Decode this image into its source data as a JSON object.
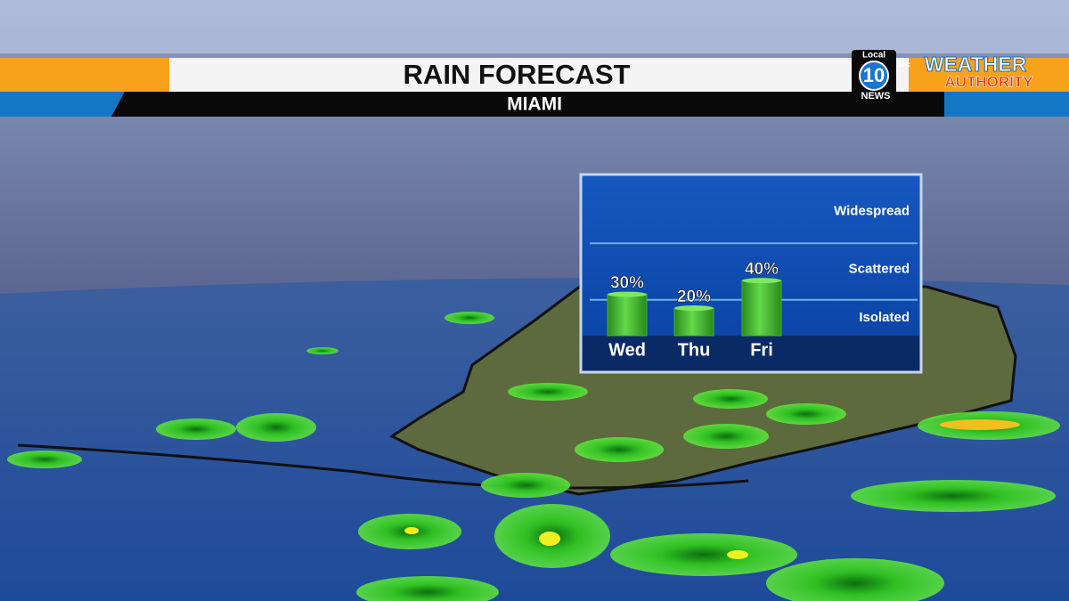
{
  "header": {
    "title": "RAIN FORECAST",
    "subtitle": "MIAMI"
  },
  "logo": {
    "station_top": "Local",
    "station_number": "10",
    "station_bottom": "NEWS",
    "network": "abc",
    "brand_line1": "WEATHER",
    "brand_line2": "AUTHORITY"
  },
  "chart_data": {
    "type": "bar",
    "categories": [
      "Wed",
      "Thu",
      "Fri"
    ],
    "values": [
      30,
      20,
      40
    ],
    "value_labels": [
      "30%",
      "20%",
      "40%"
    ],
    "color": "#3cb82a",
    "ylim": [
      0,
      115
    ],
    "yticks": [
      {
        "value": 13,
        "label": "Isolated"
      },
      {
        "value": 48,
        "label": "Scattered"
      },
      {
        "value": 90,
        "label": "Widespread"
      }
    ],
    "band_lines": [
      26,
      67
    ]
  }
}
